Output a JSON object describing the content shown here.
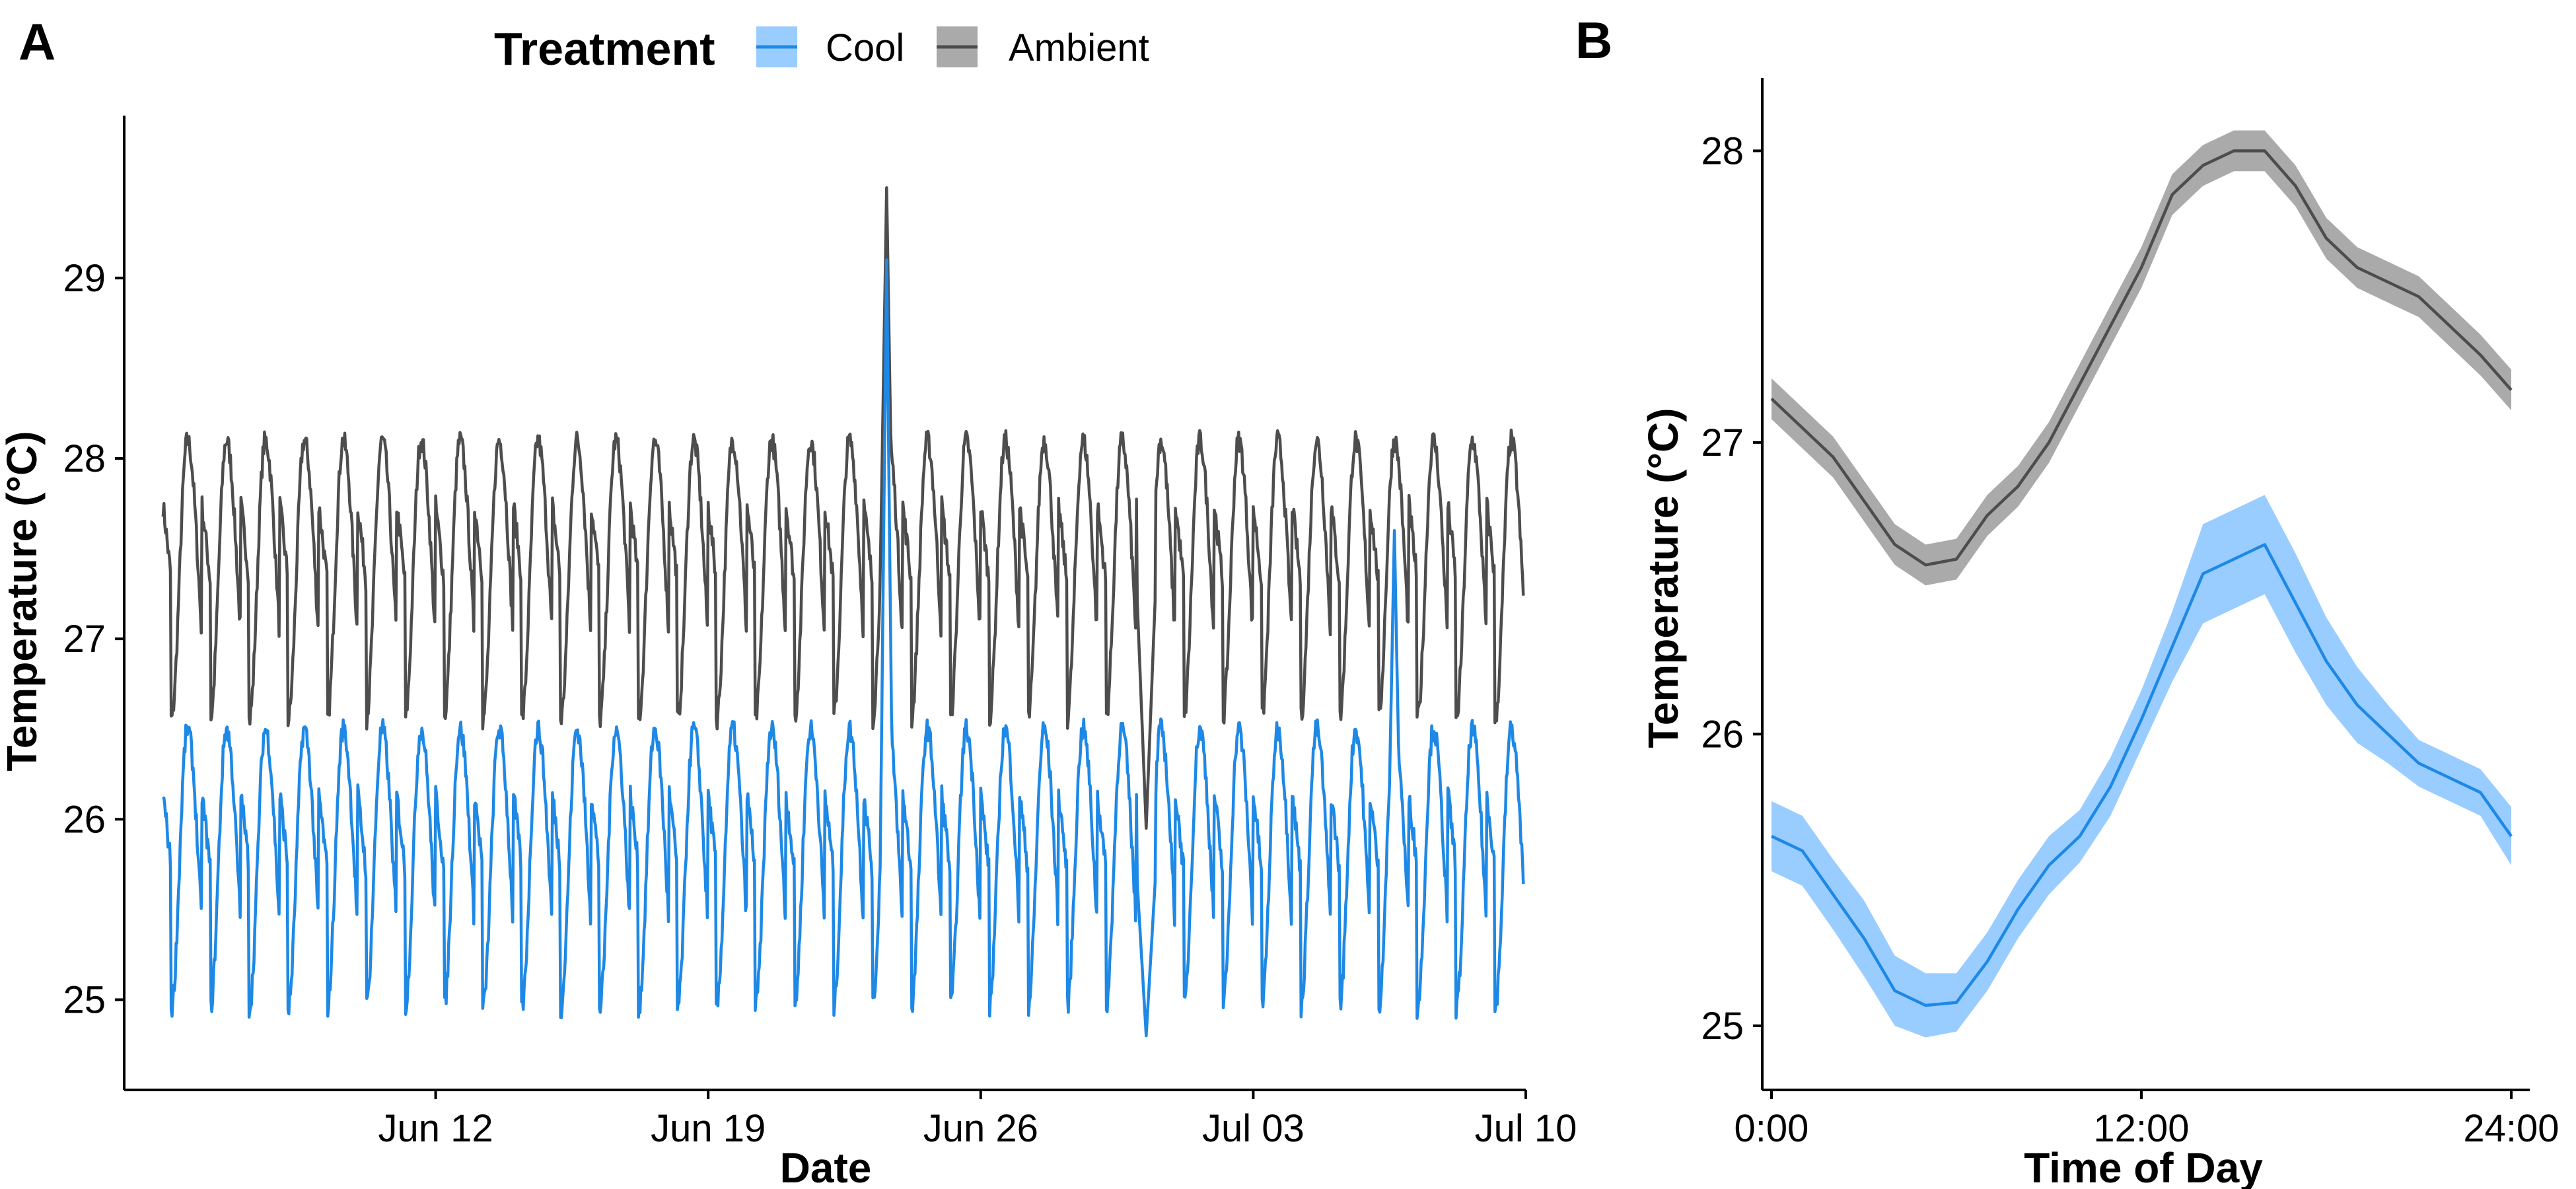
{
  "legend": {
    "title": "Treatment",
    "position": "top",
    "entries": [
      {
        "label": "Cool",
        "color": "#1E88E5",
        "fill": "#99CCFF"
      },
      {
        "label": "Ambient",
        "color": "#4D4D4D",
        "fill": "#AAAAAA"
      }
    ]
  },
  "chart_data": [
    {
      "panel": "A",
      "type": "line",
      "xlabel": "Date",
      "ylabel": "Temperature (°C)",
      "x_unit": "date",
      "x_start": "2024-06-05",
      "x_end": "2024-07-09",
      "xlim": [
        "2024-06-04",
        "2024-07-10"
      ],
      "ylim": [
        24.5,
        29.9
      ],
      "x_ticks": [
        {
          "date": "2024-06-12",
          "label": "Jun 12"
        },
        {
          "date": "2024-06-19",
          "label": "Jun 19"
        },
        {
          "date": "2024-06-26",
          "label": "Jun 26"
        },
        {
          "date": "2024-07-03",
          "label": "Jul 03"
        },
        {
          "date": "2024-07-10",
          "label": "Jul 10"
        }
      ],
      "y_ticks": [
        25,
        26,
        27,
        28,
        29
      ],
      "grid": false,
      "series": [
        {
          "name": "Cool",
          "color": "#1E88E5",
          "daily_min": 24.95,
          "daily_max": 26.5,
          "events": [
            {
              "date": "2024-06-23T14:00",
              "peak": 29.1
            },
            {
              "date": "2024-06-30T06:00",
              "min": 24.8
            },
            {
              "date": "2024-07-06T15:00",
              "peak": 27.6
            }
          ]
        },
        {
          "name": "Ambient",
          "color": "#4D4D4D",
          "daily_min": 26.55,
          "daily_max": 28.1,
          "events": [
            {
              "date": "2024-06-23T14:00",
              "peak": 29.5
            },
            {
              "date": "2024-06-30T06:00",
              "min": 25.95
            }
          ]
        }
      ]
    },
    {
      "panel": "B",
      "type": "line",
      "xlabel": "Time of Day",
      "ylabel": "Temperature (°C)",
      "xlim": [
        -0.3,
        24.6
      ],
      "ylim": [
        24.78,
        28.25
      ],
      "x_ticks": [
        {
          "value": 0,
          "label": "0:00"
        },
        {
          "value": 12,
          "label": "12:00"
        },
        {
          "value": 24,
          "label": "24:00"
        }
      ],
      "y_ticks": [
        25,
        26,
        27,
        28
      ],
      "grid": false,
      "series": [
        {
          "name": "Cool",
          "color": "#1E88E5",
          "fill": "#99CCFF",
          "x": [
            0,
            1,
            2,
            3,
            4,
            5,
            6,
            7,
            8,
            9,
            10,
            11,
            12,
            13,
            14,
            15,
            16,
            17,
            18,
            19,
            20,
            21,
            22,
            23,
            24
          ],
          "y": [
            25.65,
            25.6,
            25.45,
            25.3,
            25.12,
            25.07,
            25.08,
            25.22,
            25.4,
            25.55,
            25.65,
            25.82,
            26.05,
            26.3,
            26.55,
            26.6,
            26.65,
            26.45,
            26.25,
            26.1,
            26.0,
            25.9,
            25.85,
            25.8,
            25.65
          ],
          "band": [
            0.12,
            0.12,
            0.12,
            0.13,
            0.12,
            0.11,
            0.1,
            0.1,
            0.1,
            0.1,
            0.09,
            0.1,
            0.1,
            0.12,
            0.17,
            0.17,
            0.17,
            0.17,
            0.15,
            0.13,
            0.1,
            0.08,
            0.08,
            0.08,
            0.1
          ]
        },
        {
          "name": "Ambient",
          "color": "#4D4D4D",
          "fill": "#AAAAAA",
          "x": [
            0,
            1,
            2,
            3,
            4,
            5,
            6,
            7,
            8,
            9,
            10,
            11,
            12,
            13,
            14,
            15,
            16,
            17,
            18,
            19,
            20,
            21,
            22,
            23,
            24
          ],
          "y": [
            27.15,
            27.05,
            26.95,
            26.8,
            26.65,
            26.58,
            26.6,
            26.75,
            26.85,
            27.0,
            27.2,
            27.4,
            27.6,
            27.85,
            27.95,
            28.0,
            28.0,
            27.88,
            27.7,
            27.6,
            27.55,
            27.5,
            27.4,
            27.3,
            27.18
          ]
        }
      ]
    }
  ]
}
